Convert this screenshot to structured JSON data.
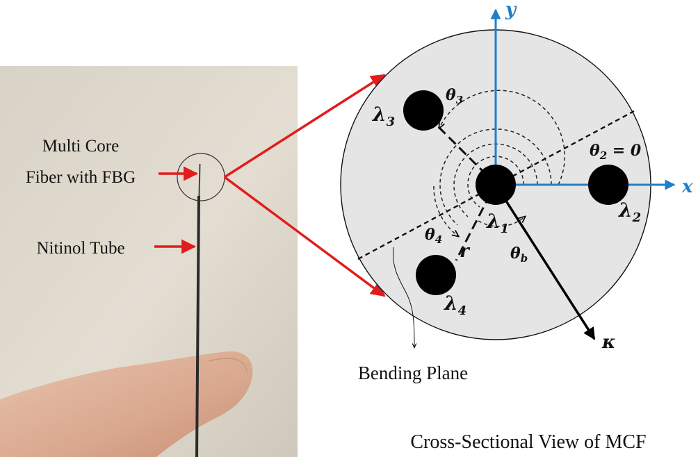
{
  "photo": {
    "labels": {
      "fiber_line1": "Multi Core",
      "fiber_line2": "Fiber with FBG",
      "tube": "Nitinol Tube"
    }
  },
  "diagram": {
    "axes": {
      "x": "x",
      "y": "y"
    },
    "cores": {
      "center": {
        "name": "λ",
        "sub": "1"
      },
      "right": {
        "name": "λ",
        "sub": "2"
      },
      "upper_left": {
        "name": "λ",
        "sub": "3"
      },
      "lower_left": {
        "name": "λ",
        "sub": "4"
      }
    },
    "angles": {
      "theta2": {
        "sym": "θ",
        "sub": "2",
        "suffix": " = 0"
      },
      "theta3": {
        "sym": "θ",
        "sub": "3"
      },
      "theta4": {
        "sym": "θ",
        "sub": "4"
      },
      "theta_b": {
        "sym": "θ",
        "sub": "b"
      }
    },
    "radius_label": "r",
    "curvature_label": "κ",
    "bending_plane_label": "Bending Plane",
    "caption": "Cross-Sectional View of MCF"
  },
  "colors": {
    "axis_blue": "#1f7fc6",
    "arrow_red": "#e31b1b",
    "cross_section_fill": "#e5e5e5",
    "core_fill": "#000000"
  }
}
